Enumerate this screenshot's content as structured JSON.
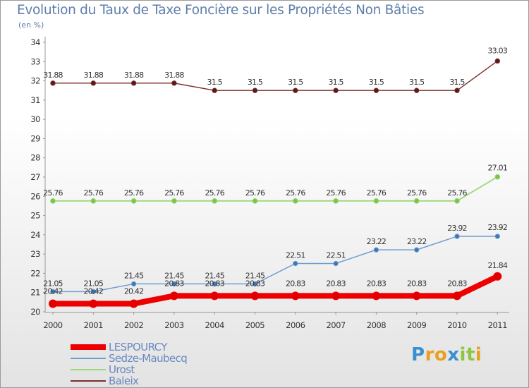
{
  "title": "Evolution du Taux de Taxe Foncière sur les Propriétés Non Bâties",
  "unit": "(en %)",
  "logo": {
    "letters": [
      "P",
      "r",
      "o",
      "x",
      "i",
      "t",
      "i"
    ],
    "colors": [
      "#3a8fd0",
      "#e8a020",
      "#e8a020",
      "#3a8fd0",
      "#8cc63f",
      "#8cc63f",
      "#e8a020"
    ]
  },
  "chart_data": {
    "type": "line",
    "x": [
      "2000",
      "2001",
      "2002",
      "2003",
      "2004",
      "2005",
      "2006",
      "2007",
      "2008",
      "2009",
      "2010",
      "2011"
    ],
    "ylim": [
      20,
      34
    ],
    "yticks": [
      "20",
      "21",
      "22",
      "23",
      "24",
      "25",
      "26",
      "27",
      "28",
      "29",
      "30",
      "31",
      "32",
      "33",
      "34"
    ],
    "grid": false,
    "legend_position": "bottom-left",
    "series": [
      {
        "name": "Baleix",
        "color": "#7a2f2f",
        "marker": "#5a1a1a",
        "width": 1.4,
        "radius": 3.2,
        "label_dy": -8,
        "label_last_dy": -11,
        "values": [
          31.88,
          31.88,
          31.88,
          31.88,
          31.5,
          31.5,
          31.5,
          31.5,
          31.5,
          31.5,
          31.5,
          33.03
        ],
        "labels": [
          "31.88",
          "31.88",
          "31.88",
          "31.88",
          "31.5",
          "31.5",
          "31.5",
          "31.5",
          "31.5",
          "31.5",
          "31.5",
          "33.03"
        ]
      },
      {
        "name": "Urost",
        "color": "#9dd87a",
        "marker": "#7dc24a",
        "width": 1.8,
        "radius": 3.4,
        "label_dy": -8,
        "label_last_dy": -9,
        "values": [
          25.76,
          25.76,
          25.76,
          25.76,
          25.76,
          25.76,
          25.76,
          25.76,
          25.76,
          25.76,
          25.76,
          27.01
        ],
        "labels": [
          "25.76",
          "25.76",
          "25.76",
          "25.76",
          "25.76",
          "25.76",
          "25.76",
          "25.76",
          "25.76",
          "25.76",
          "25.76",
          "27.01"
        ]
      },
      {
        "name": "Sedze-Maubecq",
        "color": "#6f9ed0",
        "marker": "#3b78b8",
        "width": 1.5,
        "radius": 3.2,
        "label_dy": -8,
        "label_last_dy": -9,
        "values": [
          21.05,
          21.05,
          21.45,
          21.45,
          21.45,
          21.45,
          22.51,
          22.51,
          23.22,
          23.22,
          23.92,
          23.92
        ],
        "labels": [
          "21.05",
          "21.05",
          "21.45",
          "21.45",
          "21.45",
          "21.45",
          "22.51",
          "22.51",
          "23.22",
          "23.22",
          "23.92",
          "23.92"
        ]
      },
      {
        "name": "LESPOURCY",
        "color": "#ee0000",
        "marker": "#e00000",
        "width": 8,
        "radius": 5.5,
        "label_dy": -14,
        "label_last_dy": -12,
        "values": [
          20.42,
          20.42,
          20.42,
          20.83,
          20.83,
          20.83,
          20.83,
          20.83,
          20.83,
          20.83,
          20.83,
          21.84
        ],
        "labels": [
          "20.42",
          "20.42",
          "20.42",
          "20.83",
          "20.83",
          "20.83",
          "20.83",
          "20.83",
          "20.83",
          "20.83",
          "20.83",
          "21.84"
        ]
      }
    ],
    "legend": [
      {
        "label": "LESPOURCY",
        "color": "#ee0000",
        "height": 8
      },
      {
        "label": "Sedze-Maubecq",
        "color": "#6f9ed0",
        "height": 2
      },
      {
        "label": "Urost",
        "color": "#9dd87a",
        "height": 2
      },
      {
        "label": "Baleix",
        "color": "#7a2f2f",
        "height": 2
      }
    ]
  }
}
